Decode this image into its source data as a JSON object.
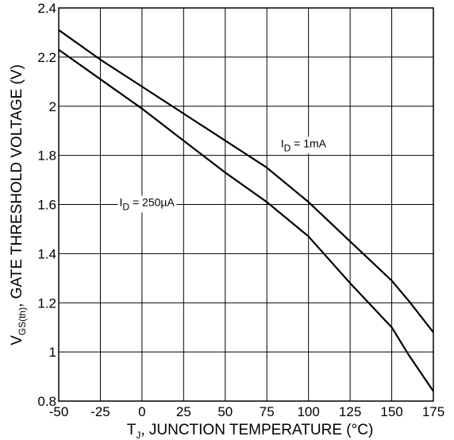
{
  "chart_data": {
    "type": "line",
    "xlabel": {
      "pre": "T",
      "sub": "J",
      "post": ", JUNCTION TEMPERATURE (",
      "unit": "°C",
      "close": ")"
    },
    "ylabel": {
      "pre": "V",
      "sub": "GS(th)",
      "post": ", GATE THRESHOLD VOLTAGE  (V)"
    },
    "xlim": [
      -50,
      175
    ],
    "ylim": [
      0.8,
      2.4
    ],
    "xticks": [
      "-50",
      "-25",
      "0",
      "25",
      "50",
      "75",
      "100",
      "125",
      "150",
      "175"
    ],
    "yticks": [
      "0.8",
      "1",
      "1.2",
      "1.4",
      "1.6",
      "1.8",
      "2",
      "2.2",
      "2.4"
    ],
    "grid": true,
    "series": [
      {
        "name": "I_D = 1mA",
        "label": {
          "pre": "I",
          "sub": "D",
          "post": " = 1mA"
        },
        "x": [
          -50,
          -25,
          0,
          25,
          50,
          75,
          100,
          125,
          150,
          160,
          175
        ],
        "y": [
          2.31,
          2.19,
          2.08,
          1.97,
          1.86,
          1.75,
          1.61,
          1.45,
          1.29,
          1.21,
          1.08
        ]
      },
      {
        "name": "I_D = 250µA",
        "label": {
          "pre": "I",
          "sub": "D",
          "post": " = 250µA"
        },
        "x": [
          -50,
          -25,
          0,
          25,
          50,
          75,
          100,
          125,
          150,
          160,
          175
        ],
        "y": [
          2.23,
          2.11,
          1.99,
          1.86,
          1.73,
          1.61,
          1.47,
          1.28,
          1.1,
          0.99,
          0.84
        ]
      }
    ]
  }
}
